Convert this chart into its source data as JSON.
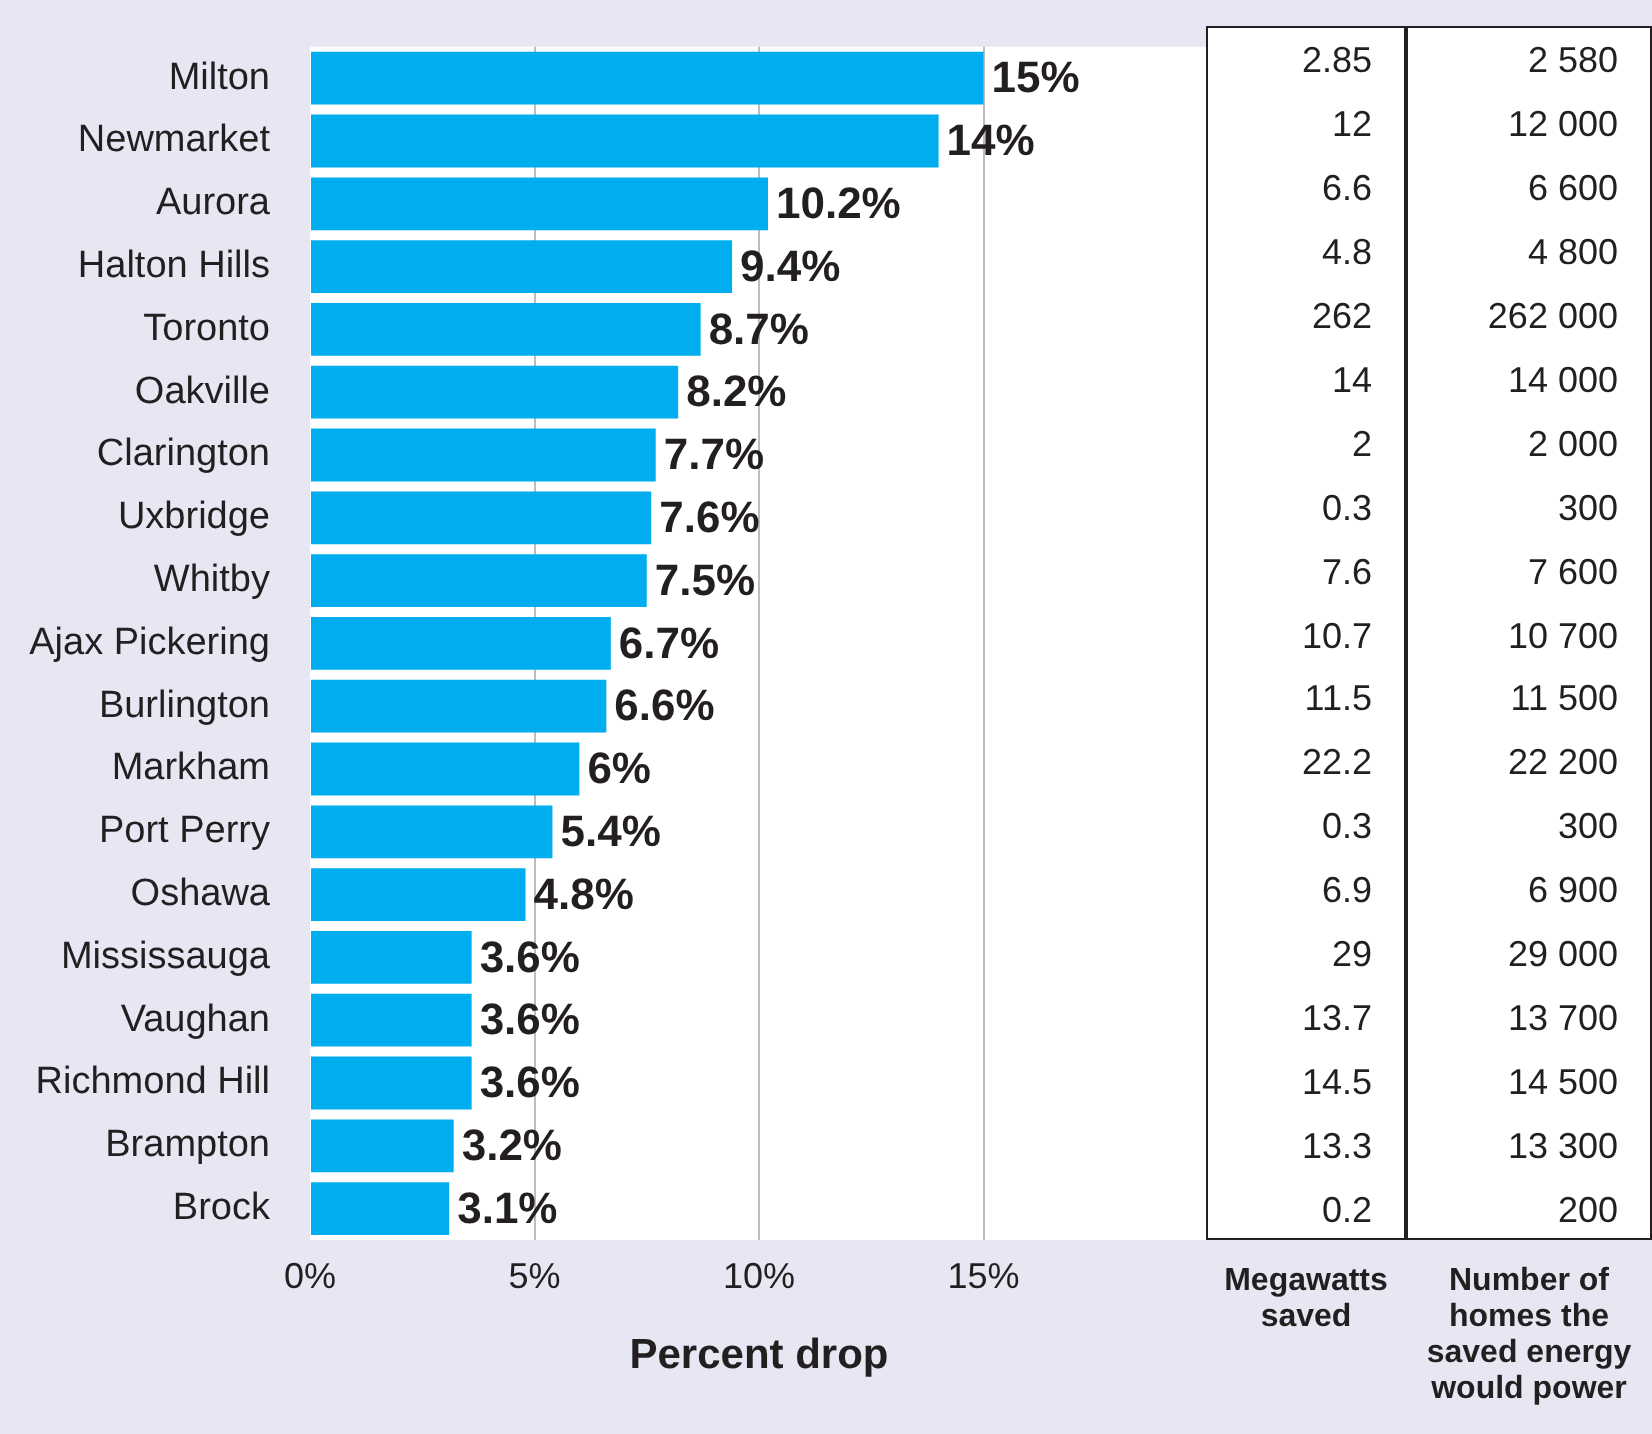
{
  "chart_data": [
    {
      "type": "bar",
      "orientation": "horizontal",
      "xlabel": "Percent drop",
      "categories": [
        "Milton",
        "Newmarket",
        "Aurora",
        "Halton Hills",
        "Toronto",
        "Oakville",
        "Clarington",
        "Uxbridge",
        "Whitby",
        "Ajax Pickering",
        "Burlington",
        "Markham",
        "Port Perry",
        "Oshawa",
        "Mississauga",
        "Vaughan",
        "Richmond Hill",
        "Brampton",
        "Brock"
      ],
      "values": [
        15,
        14,
        10.2,
        9.4,
        8.7,
        8.2,
        7.7,
        7.6,
        7.5,
        6.7,
        6.6,
        6,
        5.4,
        4.8,
        3.6,
        3.6,
        3.6,
        3.2,
        3.1
      ],
      "value_labels": [
        "15%",
        "14%",
        "10.2%",
        "9.4%",
        "8.7%",
        "8.2%",
        "7.7%",
        "7.6%",
        "7.5%",
        "6.7%",
        "6.6%",
        "6%",
        "5.4%",
        "4.8%",
        "3.6%",
        "3.6%",
        "3.6%",
        "3.2%",
        "3.1%"
      ],
      "color": "#00aeef",
      "xlim": [
        0,
        20
      ],
      "xticks": [
        {
          "value": 0,
          "label": "0%"
        },
        {
          "value": 5,
          "label": "5%"
        },
        {
          "value": 10,
          "label": "10%"
        },
        {
          "value": 15,
          "label": "15%"
        }
      ],
      "grid": "x"
    },
    {
      "type": "other",
      "xlabel": "Megawatts saved",
      "values": [
        2.85,
        12,
        6.6,
        4.8,
        262,
        14,
        2,
        0.3,
        7.6,
        10.7,
        11.5,
        22.2,
        0.3,
        6.9,
        29,
        13.7,
        14.5,
        13.3,
        0.2
      ],
      "data_labels": true
    },
    {
      "type": "other",
      "xlabel": "Number of homes the saved energy would power",
      "values": [
        2580,
        12000,
        6600,
        4800,
        262000,
        14000,
        2000,
        300,
        7600,
        10700,
        11500,
        22200,
        300,
        6900,
        29000,
        13700,
        14500,
        13300,
        200
      ],
      "value_labels": [
        "2 580",
        "12 000",
        "6 600",
        "4 800",
        "262 000",
        "14 000",
        "2 000",
        "300",
        "7 600",
        "10 700",
        "11 500",
        "22 200",
        "300",
        "6 900",
        "29 000",
        "13 700",
        "14 500",
        "13 300",
        "200"
      ]
    }
  ]
}
